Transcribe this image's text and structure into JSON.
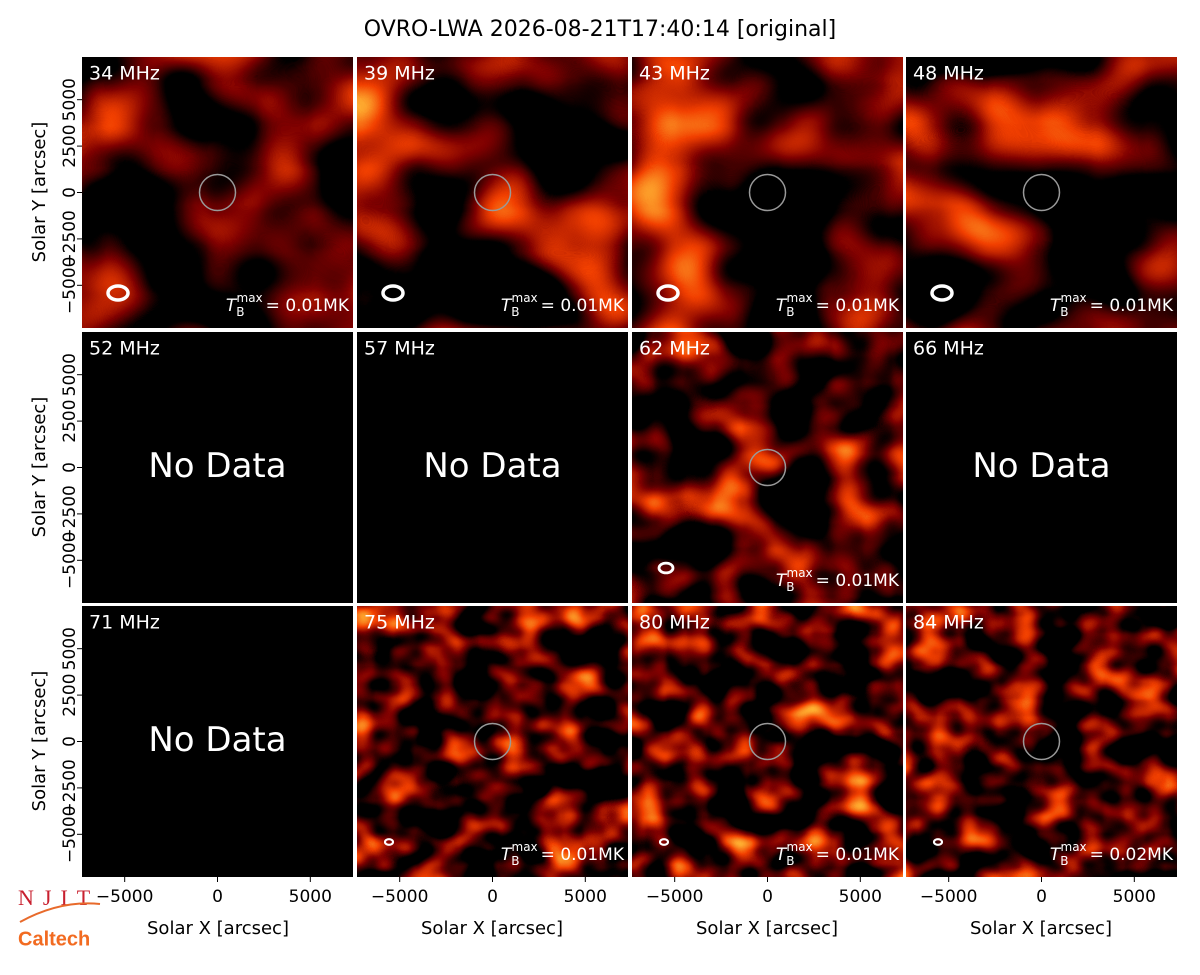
{
  "title": "OVRO-LWA 2026-08-21T17:40:14 [original]",
  "x_axis": {
    "label": "Solar X [arcsec]",
    "lim": [
      -7300,
      7300
    ],
    "ticks": [
      {
        "value": -5000,
        "label": "−5000"
      },
      0,
      5000
    ]
  },
  "y_axis": {
    "label": "Solar Y [arcsec]",
    "lim": [
      -7300,
      7300
    ],
    "ticks": [
      {
        "value": -5000,
        "label": "−5000"
      },
      {
        "value": -2500,
        "label": "−2500"
      },
      0,
      2500,
      5000
    ]
  },
  "no_data_text": "No Data",
  "tmax_symbol": {
    "base": "T",
    "sub": "B",
    "sup": "max"
  },
  "panels": [
    {
      "label": "34 MHz",
      "tmax": "= 0.01MK"
    },
    {
      "label": "39 MHz",
      "tmax": "= 0.01MK"
    },
    {
      "label": "43 MHz",
      "tmax": "= 0.01MK"
    },
    {
      "label": "48 MHz",
      "tmax": "= 0.01MK"
    },
    {
      "label": "52 MHz"
    },
    {
      "label": "57 MHz"
    },
    {
      "label": "62 MHz",
      "tmax": "= 0.01MK"
    },
    {
      "label": "66 MHz"
    },
    {
      "label": "71 MHz"
    },
    {
      "label": "75 MHz",
      "tmax": "= 0.01MK"
    },
    {
      "label": "80 MHz",
      "tmax": "= 0.01MK"
    },
    {
      "label": "84 MHz",
      "tmax": "= 0.02MK"
    }
  ],
  "logos": [
    "NJIT",
    "Caltech"
  ]
}
